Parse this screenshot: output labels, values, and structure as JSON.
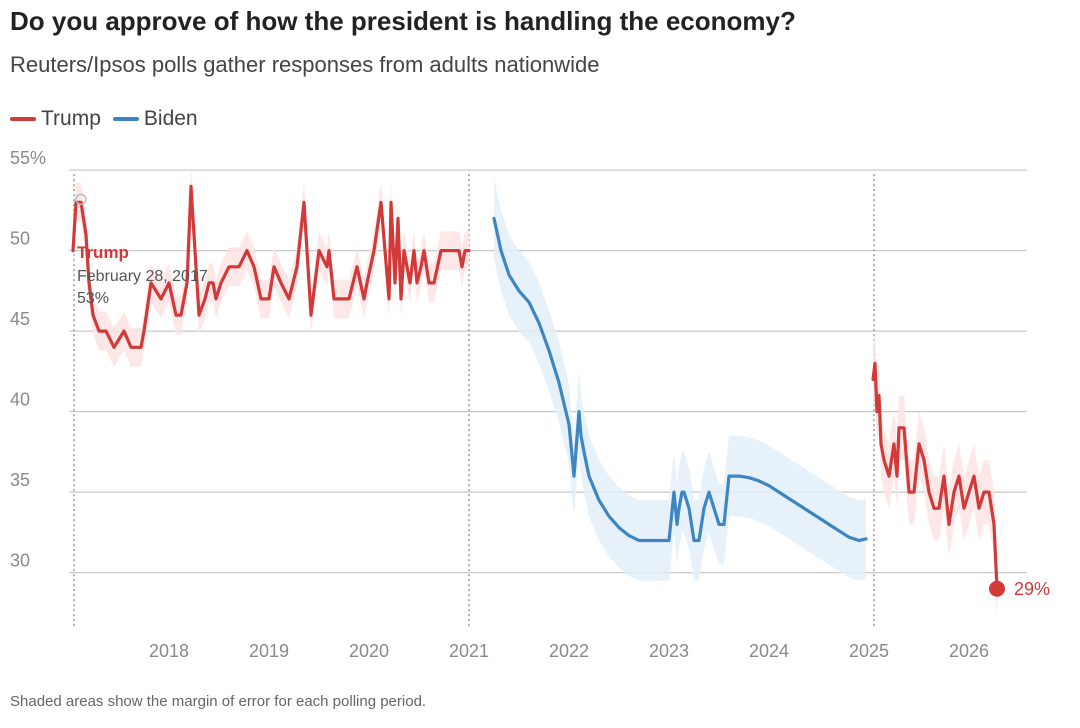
{
  "header": {
    "title": "Do you approve of how the president is handling the economy?",
    "subtitle": "Reuters/Ipsos polls gather responses from adults nationwide"
  },
  "footnote": "Shaded areas show the margin of error for each polling period.",
  "colors": {
    "trump": "#d23a3a",
    "biden": "#3d86c2",
    "trump_band": "#fde3e3",
    "biden_band": "#e3eff9"
  },
  "chart_data": {
    "type": "line",
    "xlabel": "",
    "ylabel": "",
    "ylim": [
      26.5,
      56.5
    ],
    "xlim": [
      2017.0,
      2026.58
    ],
    "y_ticks": [
      {
        "value": 55,
        "label": "55%"
      },
      {
        "value": 50,
        "label": "50"
      },
      {
        "value": 45,
        "label": "45"
      },
      {
        "value": 40,
        "label": "40"
      },
      {
        "value": 35,
        "label": "35"
      },
      {
        "value": 30,
        "label": "30"
      }
    ],
    "x_ticks": [
      {
        "value": 2018,
        "label": "2018"
      },
      {
        "value": 2019,
        "label": "2019"
      },
      {
        "value": 2020,
        "label": "2020"
      },
      {
        "value": 2021,
        "label": "2021"
      },
      {
        "value": 2022,
        "label": "2022"
      },
      {
        "value": 2023,
        "label": "2023"
      },
      {
        "value": 2024,
        "label": "2024"
      },
      {
        "value": 2025,
        "label": "2025"
      },
      {
        "value": 2026,
        "label": "2026"
      }
    ],
    "legend": {
      "placement": "top-left",
      "entries": [
        {
          "name": "Trump",
          "color": "#d23a3a"
        },
        {
          "name": "Biden",
          "color": "#3d86c2"
        }
      ]
    },
    "term_start_markers": [
      2017.05,
      2021.0,
      2025.05
    ],
    "series": [
      {
        "name": "Trump",
        "color": "#d23a3a",
        "margin": 1.2,
        "x": [
          2017.04,
          2017.07,
          2017.12,
          2017.17,
          2017.2,
          2017.24,
          2017.3,
          2017.37,
          2017.45,
          2017.55,
          2017.62,
          2017.67,
          2017.72,
          2017.75,
          2017.82,
          2017.92,
          2018.0,
          2018.07,
          2018.12,
          2018.18,
          2018.22,
          2018.3,
          2018.36,
          2018.4,
          2018.44,
          2018.47,
          2018.52,
          2018.6,
          2018.7,
          2018.78,
          2018.85,
          2018.92,
          2019.0,
          2019.05,
          2019.12,
          2019.2,
          2019.28,
          2019.35,
          2019.42,
          2019.5,
          2019.58,
          2019.6,
          2019.65,
          2019.72,
          2019.8,
          2019.88,
          2019.95,
          2019.98,
          2020.05,
          2020.12,
          2020.2,
          2020.22,
          2020.26,
          2020.29,
          2020.32,
          2020.35,
          2020.38,
          2020.41,
          2020.45,
          2020.48,
          2020.52,
          2020.55,
          2020.6,
          2020.65,
          2020.72,
          2020.78,
          2020.85,
          2020.9,
          2020.93,
          2020.96,
          2021.0
        ],
        "y": [
          50,
          53,
          53,
          51,
          48,
          46,
          45,
          45,
          44,
          45,
          44,
          44,
          44,
          45,
          48,
          47,
          48,
          46,
          46,
          48,
          54,
          46,
          47,
          48,
          48,
          47,
          48,
          49,
          49,
          50,
          49,
          47,
          47,
          49,
          48,
          47,
          49,
          53,
          46,
          50,
          49,
          50,
          47,
          47,
          47,
          49,
          47,
          48,
          50,
          53,
          47,
          53,
          48,
          52,
          47,
          50,
          49,
          48,
          50,
          48,
          49,
          50,
          48,
          48,
          50,
          50,
          50,
          50,
          49,
          50,
          50
        ]
      },
      {
        "name": "Biden",
        "color": "#3d86c2",
        "margin": 2.5,
        "x": [
          2021.25,
          2021.32,
          2021.4,
          2021.5,
          2021.6,
          2021.7,
          2021.8,
          2021.9,
          2022.0,
          2022.05,
          2022.1,
          2022.12,
          2022.15,
          2022.2,
          2022.3,
          2022.4,
          2022.5,
          2022.6,
          2022.7,
          2022.8,
          2022.9,
          2023.0,
          2023.05,
          2023.08,
          2023.1,
          2023.13,
          2023.15,
          2023.2,
          2023.25,
          2023.3,
          2023.35,
          2023.4,
          2023.45,
          2023.5,
          2023.55,
          2023.6,
          2023.65,
          2023.7,
          2023.8,
          2023.9,
          2024.0,
          2024.1,
          2024.2,
          2024.3,
          2024.4,
          2024.5,
          2024.6,
          2024.7,
          2024.8,
          2024.9,
          2024.97
        ],
        "y": [
          52,
          50,
          48.5,
          47.5,
          46.8,
          45.5,
          43.8,
          41.8,
          39.2,
          36,
          40,
          38.5,
          37.5,
          36,
          34.5,
          33.5,
          32.8,
          32.3,
          32,
          32,
          32,
          32,
          35,
          33,
          34,
          35,
          35,
          34,
          32,
          32,
          34,
          35,
          34,
          33,
          33,
          36,
          36,
          36,
          35.9,
          35.7,
          35.4,
          35,
          34.6,
          34.2,
          33.8,
          33.4,
          33,
          32.6,
          32.2,
          32,
          32.1
        ]
      },
      {
        "name": "Trump",
        "color": "#d23a3a",
        "margin": 2.0,
        "x": [
          2025.04,
          2025.06,
          2025.08,
          2025.1,
          2025.12,
          2025.15,
          2025.2,
          2025.25,
          2025.28,
          2025.3,
          2025.35,
          2025.4,
          2025.45,
          2025.5,
          2025.55,
          2025.6,
          2025.65,
          2025.7,
          2025.75,
          2025.8,
          2025.85,
          2025.9,
          2025.95,
          2026.0,
          2026.05,
          2026.1,
          2026.15,
          2026.2,
          2026.25,
          2026.28
        ],
        "y": [
          42,
          43,
          40,
          41,
          38,
          37,
          36,
          38,
          36,
          39,
          39,
          35,
          35,
          38,
          37,
          35,
          34,
          34,
          36,
          33,
          35,
          36,
          34,
          35,
          36,
          34,
          35,
          35,
          33,
          29
        ]
      }
    ],
    "annotations": [
      {
        "label": "Trump",
        "date": "February 28, 2017",
        "value": "53%",
        "x": 2017.16,
        "y": 53
      },
      {
        "label": "29%",
        "x": 2026.28,
        "y": 29
      }
    ]
  }
}
